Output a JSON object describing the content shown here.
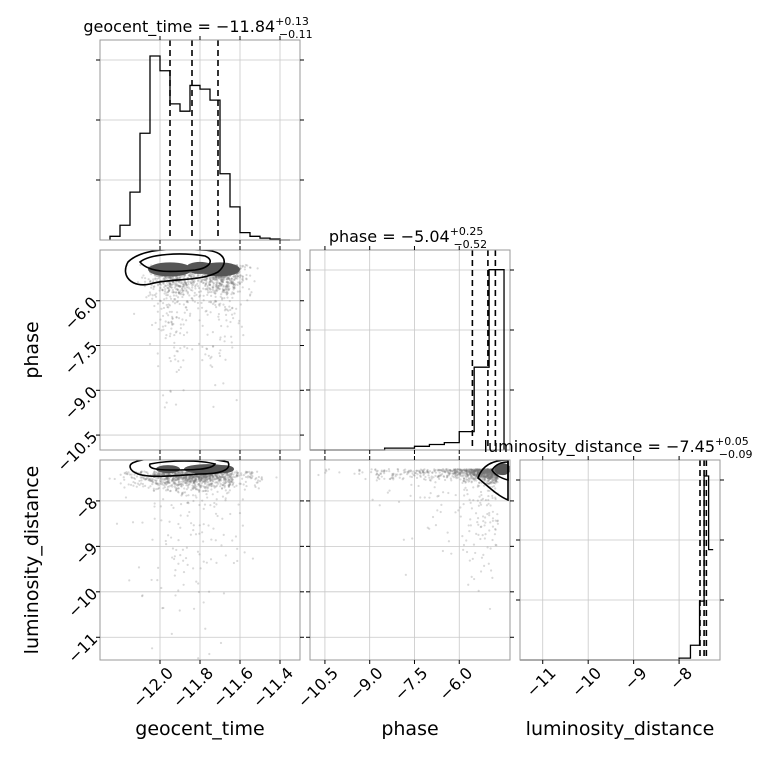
{
  "chart_data": {
    "type": "corner",
    "parameters": [
      "geocent_time",
      "phase",
      "luminosity_distance"
    ],
    "axis_labels": [
      "geocent_time",
      "phase",
      "luminosity_distance"
    ],
    "ranges": {
      "geocent_time": [
        -12.3,
        -11.3
      ],
      "phase": [
        -11.0,
        -4.3
      ],
      "luminosity_distance": [
        -11.5,
        -7.1
      ]
    },
    "ticks": {
      "geocent_time": [
        "−12.0",
        "−11.8",
        "−11.6",
        "−11.4"
      ],
      "geocent_time_values": [
        -12.0,
        -11.8,
        -11.6,
        -11.4
      ],
      "phase": [
        "−10.5",
        "−9.0",
        "−7.5",
        "−6.0"
      ],
      "phase_values": [
        -10.5,
        -9.0,
        -7.5,
        -6.0
      ],
      "luminosity_distance": [
        "−11",
        "−10",
        "−9",
        "−8"
      ],
      "luminosity_distance_values": [
        -11,
        -10,
        -9,
        -8
      ]
    },
    "titles": [
      {
        "param": "geocent_time",
        "prefix": "geocent_time = ",
        "median": "−11.84",
        "plus": "+0.13",
        "minus": "−0.11"
      },
      {
        "param": "phase",
        "prefix": "phase = ",
        "median": "−5.04",
        "plus": "+0.25",
        "minus": "−0.52"
      },
      {
        "param": "luminosity_distance",
        "prefix": "luminosity_distance = ",
        "median": "−7.45",
        "plus": "+0.05",
        "minus": "−0.09"
      }
    ],
    "quantiles": {
      "geocent_time": [
        -11.95,
        -11.84,
        -11.71
      ],
      "phase": [
        -5.56,
        -5.04,
        -4.79
      ],
      "luminosity_distance": [
        -7.54,
        -7.45,
        -7.4
      ]
    },
    "histograms": {
      "geocent_time": {
        "edges": [
          -12.25,
          -12.2,
          -12.15,
          -12.1,
          -12.05,
          -12.0,
          -11.95,
          -11.9,
          -11.85,
          -11.8,
          -11.75,
          -11.7,
          -11.65,
          -11.6,
          -11.55,
          -11.5,
          -11.45,
          -11.4,
          -11.35
        ],
        "counts": [
          0.02,
          0.08,
          0.26,
          0.58,
          1.0,
          0.92,
          0.74,
          0.7,
          0.84,
          0.82,
          0.76,
          0.36,
          0.18,
          0.04,
          0.02,
          0.01,
          0.005,
          0.0
        ]
      },
      "phase": {
        "edges": [
          -11.0,
          -10.5,
          -10.0,
          -9.5,
          -9.0,
          -8.5,
          -8.0,
          -7.5,
          -7.0,
          -6.5,
          -6.0,
          -5.5,
          -5.0,
          -4.5
        ],
        "counts": [
          0.0,
          0.0,
          0.0,
          0.0,
          0.0,
          0.01,
          0.01,
          0.02,
          0.03,
          0.04,
          0.1,
          0.45,
          0.98,
          0.0
        ]
      },
      "luminosity_distance": {
        "edges": [
          -11.5,
          -11.0,
          -10.5,
          -10.0,
          -9.5,
          -9.0,
          -8.5,
          -8.0,
          -7.75,
          -7.55,
          -7.45,
          -7.35,
          -7.25
        ],
        "counts": [
          0.0,
          0.0,
          0.0,
          0.0,
          0.0,
          0.0,
          0.0,
          0.01,
          0.08,
          0.32,
          1.0,
          0.6
        ]
      }
    },
    "grid": true
  }
}
